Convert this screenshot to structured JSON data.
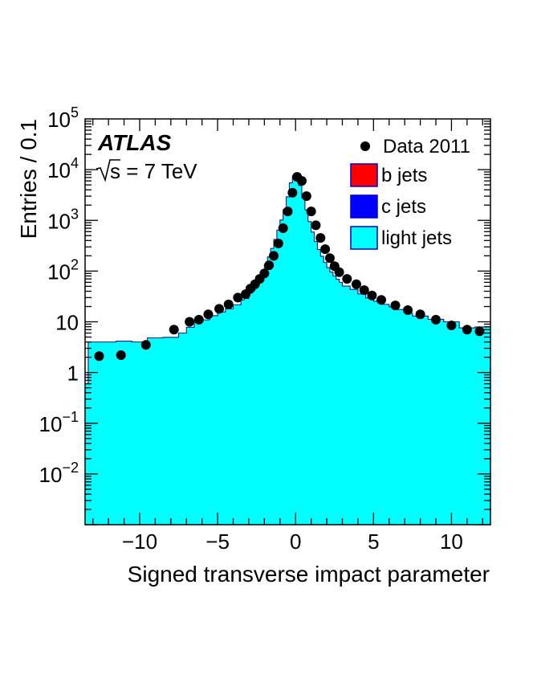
{
  "chart_data": {
    "type": "area",
    "title": "",
    "xlabel": "Signed transverse impact parameter",
    "ylabel": "Entries / 0.1",
    "xlim": [
      -13.5,
      12.5
    ],
    "ylim": [
      0.001,
      100000
    ],
    "log_y": true,
    "grid": false,
    "legend_position": "top-right",
    "x_ticks": [
      -10,
      -5,
      0,
      5,
      10
    ],
    "x_tick_labels": [
      "−10",
      "−5",
      "0",
      "5",
      "10"
    ],
    "y_ticks": [
      {
        "value": 0.01,
        "base": "10",
        "exp": "−2"
      },
      {
        "value": 0.1,
        "base": "10",
        "exp": "−1"
      },
      {
        "value": 1,
        "base": "1",
        "exp": ""
      },
      {
        "value": 10,
        "base": "10",
        "exp": ""
      },
      {
        "value": 100,
        "base": "10",
        "exp": "2"
      },
      {
        "value": 1000,
        "base": "10",
        "exp": "3"
      },
      {
        "value": 10000,
        "base": "10",
        "exp": "4"
      },
      {
        "value": 100000,
        "base": "10",
        "exp": "5"
      }
    ],
    "annotations": {
      "experiment": "ATLAS",
      "energy_prefix": "s = 7 TeV"
    },
    "legend": [
      {
        "label": "Data 2011",
        "kind": "marker"
      },
      {
        "label": "b jets",
        "kind": "box",
        "color": "#ff0000"
      },
      {
        "label": "c jets",
        "kind": "box",
        "color": "#0000ff"
      },
      {
        "label": "light jets",
        "kind": "box",
        "color": "#00ffff"
      }
    ],
    "bin_edges": [
      -13.5,
      -13.3,
      -11.5,
      -10.5,
      -9.5,
      -8.5,
      -7.5,
      -7.0,
      -6.5,
      -6.0,
      -5.5,
      -5.0,
      -4.5,
      -4.0,
      -3.5,
      -3.3,
      -3.0,
      -2.8,
      -2.6,
      -2.4,
      -2.2,
      -2.0,
      -1.8,
      -1.6,
      -1.4,
      -1.2,
      -1.0,
      -0.8,
      -0.6,
      -0.4,
      -0.2,
      0.0,
      0.2,
      0.4,
      0.6,
      0.8,
      1.0,
      1.2,
      1.4,
      1.6,
      1.8,
      2.0,
      2.2,
      2.4,
      2.6,
      2.8,
      3.0,
      3.5,
      4.0,
      4.5,
      5.0,
      5.5,
      6.0,
      6.5,
      7.0,
      7.5,
      8.5,
      9.5,
      10.5,
      11.5,
      12.5
    ],
    "series": [
      {
        "name": "b jets",
        "color": "#ff0000",
        "values": [
          0.1,
          0.3,
          0.35,
          0.2,
          0.32,
          0.25,
          0.4,
          0.5,
          0.65,
          0.7,
          0.8,
          0.9,
          1.0,
          1.2,
          1.5,
          1.3,
          2.0,
          1.8,
          2.5,
          3.5,
          5,
          7,
          10,
          14,
          20,
          30,
          45,
          65,
          85,
          100,
          110,
          100,
          80,
          60,
          45,
          35,
          28,
          22,
          18,
          16,
          14,
          12,
          11,
          10,
          9,
          8,
          7.5,
          6.5,
          5.5,
          4.5,
          4.0,
          3.6,
          3.3,
          3.0,
          2.8,
          2.5,
          2.2,
          2.0,
          1.6,
          1.7
        ]
      },
      {
        "name": "c jets",
        "color": "#0000ff",
        "values": [
          0.2,
          0.7,
          0.5,
          0.3,
          0.5,
          0.4,
          0.6,
          0.8,
          1.0,
          1.2,
          1.4,
          1.7,
          2.0,
          2.5,
          3.5,
          2.5,
          4.5,
          4.0,
          6,
          9,
          13,
          20,
          30,
          45,
          70,
          110,
          170,
          250,
          330,
          400,
          420,
          380,
          300,
          220,
          160,
          110,
          80,
          60,
          48,
          40,
          34,
          30,
          27,
          24,
          22,
          20,
          16,
          14,
          11,
          10,
          8.5,
          7.5,
          6.5,
          5.5,
          5.0,
          4.5,
          4.0,
          3.5,
          2.5,
          2.6
        ]
      },
      {
        "name": "light jets",
        "color": "#00ffff",
        "values": [
          0.3,
          3.0,
          3.3,
          3.5,
          4.0,
          4.3,
          5.0,
          6.5,
          8.0,
          9.0,
          11,
          13,
          15,
          18,
          22,
          25,
          30,
          36,
          45,
          60,
          80,
          110,
          150,
          220,
          330,
          500,
          800,
          1300,
          2500,
          5000,
          7000,
          6500,
          4500,
          2500,
          1400,
          800,
          480,
          300,
          200,
          140,
          100,
          75,
          58,
          46,
          38,
          32,
          27,
          23,
          19,
          15,
          13,
          11,
          10,
          9.0,
          7.0,
          6.0,
          5.0,
          4.5,
          3.5,
          3.6
        ]
      }
    ],
    "data_points": {
      "name": "Data 2011",
      "x": [
        -12.6,
        -11.2,
        -9.6,
        -7.8,
        -6.8,
        -6.2,
        -5.6,
        -4.9,
        -4.3,
        -3.7,
        -3.2,
        -2.9,
        -2.6,
        -2.3,
        -2.0,
        -1.7,
        -1.4,
        -1.1,
        -0.8,
        -0.5,
        -0.2,
        0.1,
        0.4,
        0.7,
        1.0,
        1.3,
        1.6,
        1.9,
        2.2,
        2.5,
        2.8,
        3.3,
        3.9,
        4.4,
        4.9,
        5.5,
        6.4,
        7.2,
        8.0,
        9.0,
        10.0,
        11.0,
        11.8
      ],
      "y": [
        2.1,
        2.2,
        3.5,
        7.0,
        10,
        11,
        14,
        18,
        22,
        30,
        35,
        45,
        55,
        70,
        90,
        130,
        200,
        350,
        700,
        1500,
        3500,
        7200,
        6000,
        3000,
        1500,
        800,
        450,
        270,
        180,
        125,
        95,
        70,
        55,
        42,
        33,
        27,
        21,
        17,
        14,
        11,
        8.5,
        7.0,
        6.5
      ]
    }
  }
}
